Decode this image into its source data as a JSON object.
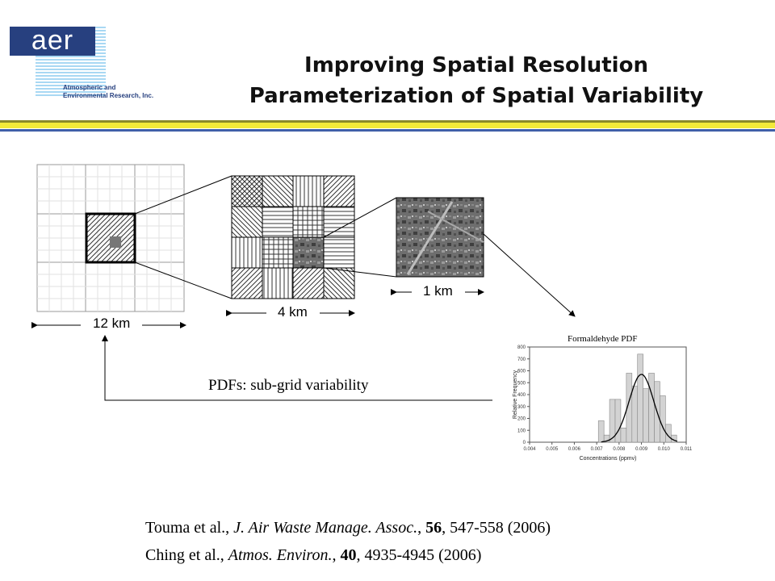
{
  "logo": {
    "mark": "aer",
    "sub_line1": "Atmospheric and",
    "sub_line2": "Environmental Research, Inc."
  },
  "title": {
    "line1": "Improving Spatial Resolution",
    "line2": "Parameterization of Spatial Variability"
  },
  "colors": {
    "rule_olive": "#8a8a2a",
    "rule_yellow": "#f2ea3a",
    "rule_blue": "#3f5fa8",
    "logo_blue": "#27407f"
  },
  "scales": {
    "grid12": "12 km",
    "grid4": "4 km",
    "grid1": "1 km"
  },
  "pdf_title": "Formaldehyde PDF",
  "subgrid_caption": "PDFs: sub-grid variability",
  "histogram": {
    "ylabel": "Relative Frequency",
    "xlabel": "Concentrations (ppmv)",
    "xticks": [
      "0.004",
      "0.005",
      "0.006",
      "0.007",
      "0.008",
      "0.009",
      "0.010",
      "0.011"
    ],
    "yticks": [
      "0",
      "100",
      "200",
      "300",
      "400",
      "500",
      "600",
      "700",
      "800"
    ]
  },
  "chart_data": {
    "type": "bar",
    "title": "Formaldehyde PDF",
    "xlabel": "Concentrations (ppmv)",
    "ylabel": "Relative Frequency",
    "xlim": [
      0.004,
      0.011
    ],
    "ylim": [
      0,
      800
    ],
    "bin_width": 0.00025,
    "x": [
      0.0072,
      0.00745,
      0.0077,
      0.00795,
      0.0082,
      0.00845,
      0.0087,
      0.00895,
      0.0092,
      0.00945,
      0.0097,
      0.00995,
      0.0102,
      0.01045
    ],
    "values": [
      180,
      60,
      360,
      360,
      120,
      580,
      470,
      740,
      450,
      580,
      510,
      390,
      150,
      60
    ],
    "fit_curve": {
      "type": "normal",
      "mean": 0.009,
      "sd": 0.00055,
      "peak": 570
    }
  },
  "refs": [
    {
      "authors": "Touma et al., ",
      "journal": "J. Air Waste Manage. Assoc.",
      "sep": ", ",
      "volume": "56",
      "pages": ", 547-558 (2006)"
    },
    {
      "authors": "Ching et al., ",
      "journal": "Atmos. Environ.",
      "sep": ", ",
      "volume": "40",
      "pages": ", 4935-4945 (2006)"
    }
  ]
}
